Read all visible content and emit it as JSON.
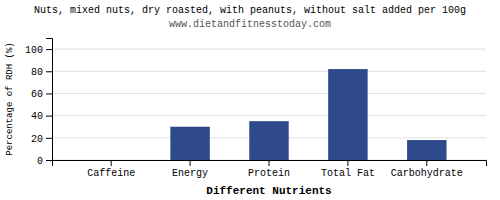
{
  "chart_data": {
    "type": "bar",
    "title": "Nuts, mixed nuts, dry roasted, with peanuts, without salt added per 100g",
    "subtitle": "www.dietandfitnesstoday.com",
    "categories": [
      "Caffeine",
      "Energy",
      "Protein",
      "Total Fat",
      "Carbohydrate"
    ],
    "values": [
      0,
      30,
      35,
      82,
      18
    ],
    "color": "#2e4a8a",
    "xlabel": "Different Nutrients",
    "ylabel": "Percentage of RDH (%)",
    "ylim": [
      0,
      110
    ],
    "yticks": [
      0,
      20,
      40,
      60,
      80,
      100
    ],
    "grid": true
  }
}
